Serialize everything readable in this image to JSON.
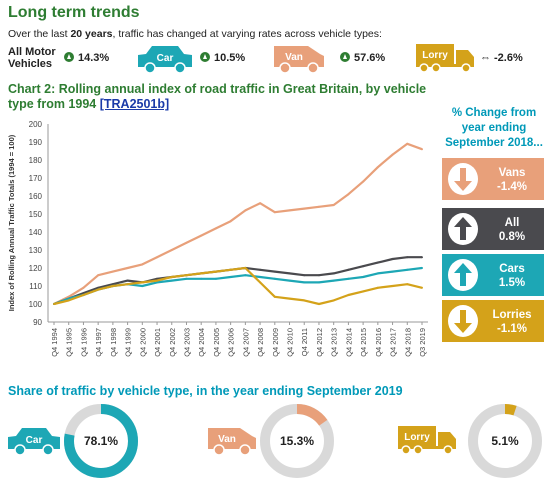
{
  "page": {
    "title": "Long term trends",
    "intro_before": "Over the last ",
    "intro_bold": "20 years",
    "intro_after": ", traffic has changed at varying rates across vehicle types:"
  },
  "summary": {
    "all_label_1": "All Motor",
    "all_label_2": "Vehicles",
    "all_value": "14.3%",
    "car_label": "Car",
    "car_value": "10.5%",
    "van_label": "Van",
    "van_value": "57.6%",
    "lorry_label": "Lorry",
    "lorry_value": "-2.6%",
    "flat_symbol": "⇔"
  },
  "chart2": {
    "title": "Chart 2: Rolling annual index of road traffic in Great Britain, by vehicle type from 1994 ",
    "ref": "[TRA2501b]"
  },
  "legend": {
    "heading": "% Change from year ending September 2018...",
    "items": [
      {
        "name": "Vans",
        "value": "-1.4%",
        "direction": "down",
        "color": "#e8a07a"
      },
      {
        "name": "All",
        "value": "0.8%",
        "direction": "up",
        "color": "#4a4a4e"
      },
      {
        "name": "Cars",
        "value": "1.5%",
        "direction": "up",
        "color": "#1da7b5"
      },
      {
        "name": "Lorries",
        "value": "-1.1%",
        "direction": "down",
        "color": "#d4a21a"
      }
    ]
  },
  "chart_data": {
    "type": "line",
    "ylabel": "Index of Rolling Annual Traffic Totals (1994 = 100)",
    "xlabel": "",
    "ylim": [
      90,
      200
    ],
    "yticks": [
      90,
      100,
      110,
      120,
      130,
      140,
      150,
      160,
      170,
      180,
      190,
      200
    ],
    "x": [
      "Q4 1994",
      "Q4 1995",
      "Q4 1996",
      "Q4 1997",
      "Q4 1998",
      "Q4 1999",
      "Q4 2000",
      "Q4 2001",
      "Q4 2002",
      "Q4 2003",
      "Q4 2004",
      "Q4 2005",
      "Q4 2006",
      "Q4 2007",
      "Q4 2008",
      "Q4 2009",
      "Q4 2010",
      "Q4 2011",
      "Q4 2012",
      "Q4 2013",
      "Q4 2014",
      "Q4 2015",
      "Q4 2016",
      "Q4 2017",
      "Q4 2018",
      "Q3 2019"
    ],
    "grid": false,
    "series": [
      {
        "name": "Vans",
        "color": "#e8a07a",
        "values": [
          100,
          104,
          109,
          116,
          118,
          120,
          122,
          126,
          130,
          134,
          138,
          142,
          146,
          152,
          156,
          151,
          152,
          153,
          154,
          155,
          161,
          168,
          176,
          183,
          189,
          186
        ]
      },
      {
        "name": "All",
        "color": "#4a4a4e",
        "values": [
          100,
          103,
          106,
          109,
          111,
          113,
          112,
          114,
          115,
          116,
          117,
          118,
          119,
          120,
          119,
          118,
          117,
          116,
          116,
          117,
          119,
          121,
          123,
          125,
          126,
          126
        ]
      },
      {
        "name": "Cars",
        "color": "#1da7b5",
        "values": [
          100,
          103,
          105,
          108,
          110,
          111,
          110,
          112,
          113,
          114,
          114,
          114,
          115,
          116,
          115,
          114,
          113,
          112,
          112,
          113,
          114,
          115,
          117,
          118,
          119,
          120
        ]
      },
      {
        "name": "Lorries",
        "color": "#d4a21a",
        "values": [
          100,
          102,
          105,
          108,
          110,
          111,
          112,
          113,
          115,
          116,
          117,
          118,
          119,
          120,
          112,
          104,
          103,
          102,
          100,
          102,
          105,
          107,
          109,
          110,
          111,
          109
        ]
      }
    ]
  },
  "share": {
    "title": "Share of traffic by vehicle type, in the year ending September 2019",
    "items": [
      {
        "label": "Car",
        "value": "78.1%",
        "fraction": 0.781,
        "color": "#1da7b5"
      },
      {
        "label": "Van",
        "value": "15.3%",
        "fraction": 0.153,
        "color": "#e8a07a"
      },
      {
        "label": "Lorry",
        "value": "5.1%",
        "fraction": 0.051,
        "color": "#d4a21a"
      }
    ]
  }
}
